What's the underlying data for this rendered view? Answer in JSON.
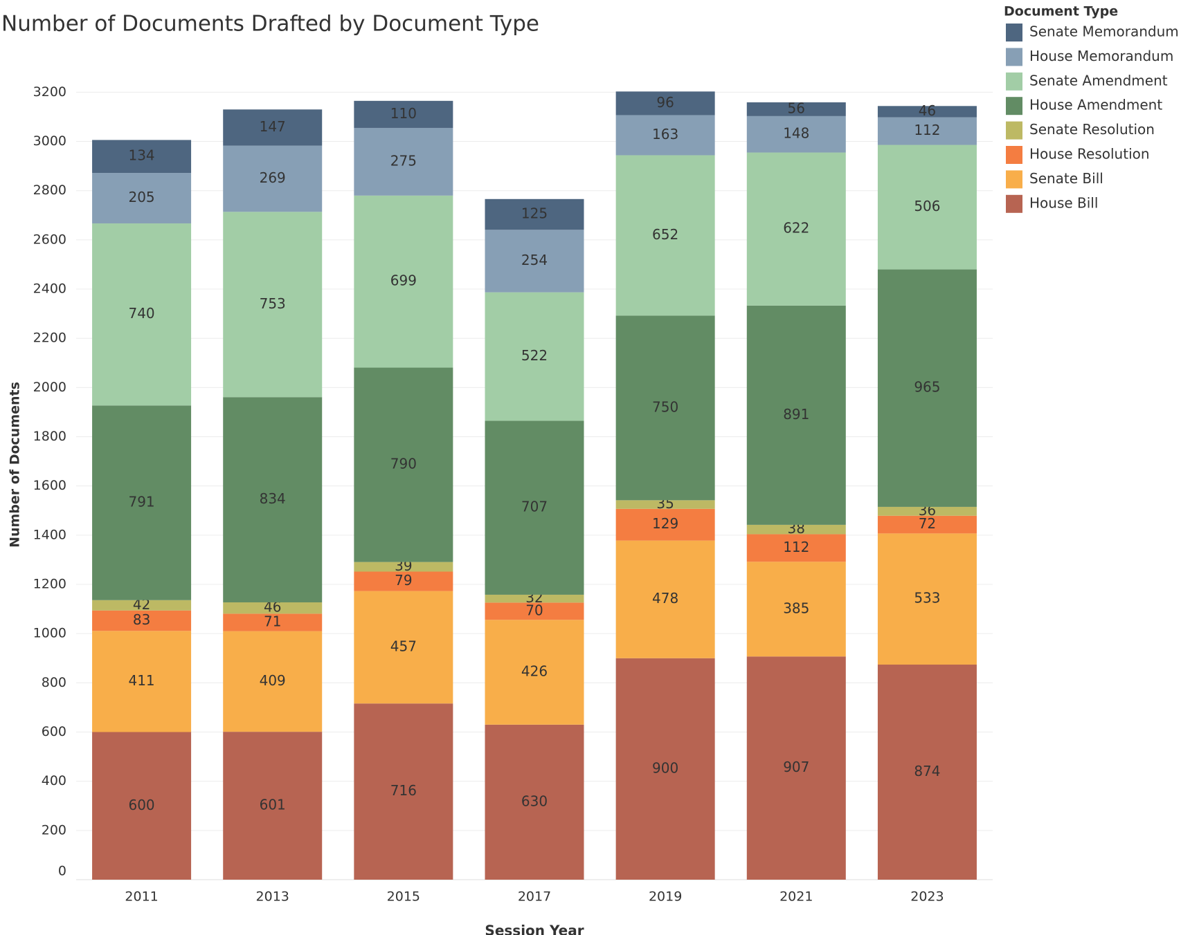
{
  "chart_data": {
    "type": "stacked_bar",
    "title": "Number of Documents Drafted by Document Type",
    "x_label": "Session Year",
    "y_label": "Number of Documents",
    "legend_title": "Document Type",
    "legend": "right",
    "grid": true,
    "categories": [
      "2011",
      "2013",
      "2015",
      "2017",
      "2019",
      "2021",
      "2023"
    ],
    "ylim": [
      0,
      3350
    ],
    "yticks": [
      0,
      200,
      400,
      600,
      800,
      1000,
      1200,
      1400,
      1600,
      1800,
      2000,
      2200,
      2400,
      2600,
      2800,
      3000,
      3200
    ],
    "series": [
      {
        "name": "House Bill",
        "color": "#b76452",
        "label_color": "#ffffff",
        "values": [
          600,
          601,
          716,
          630,
          900,
          907,
          874
        ]
      },
      {
        "name": "Senate Bill",
        "color": "#f8ae4a",
        "label_color": "#222222",
        "values": [
          411,
          409,
          457,
          426,
          478,
          385,
          533
        ]
      },
      {
        "name": "House Resolution",
        "color": "#f47d41",
        "label_color": "#222222",
        "values": [
          83,
          71,
          79,
          70,
          129,
          112,
          72
        ]
      },
      {
        "name": "Senate Resolution",
        "color": "#bdb964",
        "label_color": "#222222",
        "values": [
          42,
          46,
          39,
          32,
          35,
          38,
          36
        ]
      },
      {
        "name": "House Amendment",
        "color": "#628c64",
        "label_color": "#ffffff",
        "values": [
          791,
          834,
          790,
          707,
          750,
          891,
          965
        ]
      },
      {
        "name": "Senate Amendment",
        "color": "#a2cda6",
        "label_color": "#222222",
        "values": [
          740,
          753,
          699,
          522,
          652,
          622,
          506
        ]
      },
      {
        "name": "House Memorandum",
        "color": "#879fb5",
        "label_color": "#222222",
        "values": [
          205,
          269,
          275,
          254,
          163,
          148,
          112
        ]
      },
      {
        "name": "Senate Memorandum",
        "color": "#4e6680",
        "label_color": "#ffffff",
        "values": [
          134,
          147,
          110,
          125,
          96,
          56,
          46
        ]
      }
    ]
  }
}
